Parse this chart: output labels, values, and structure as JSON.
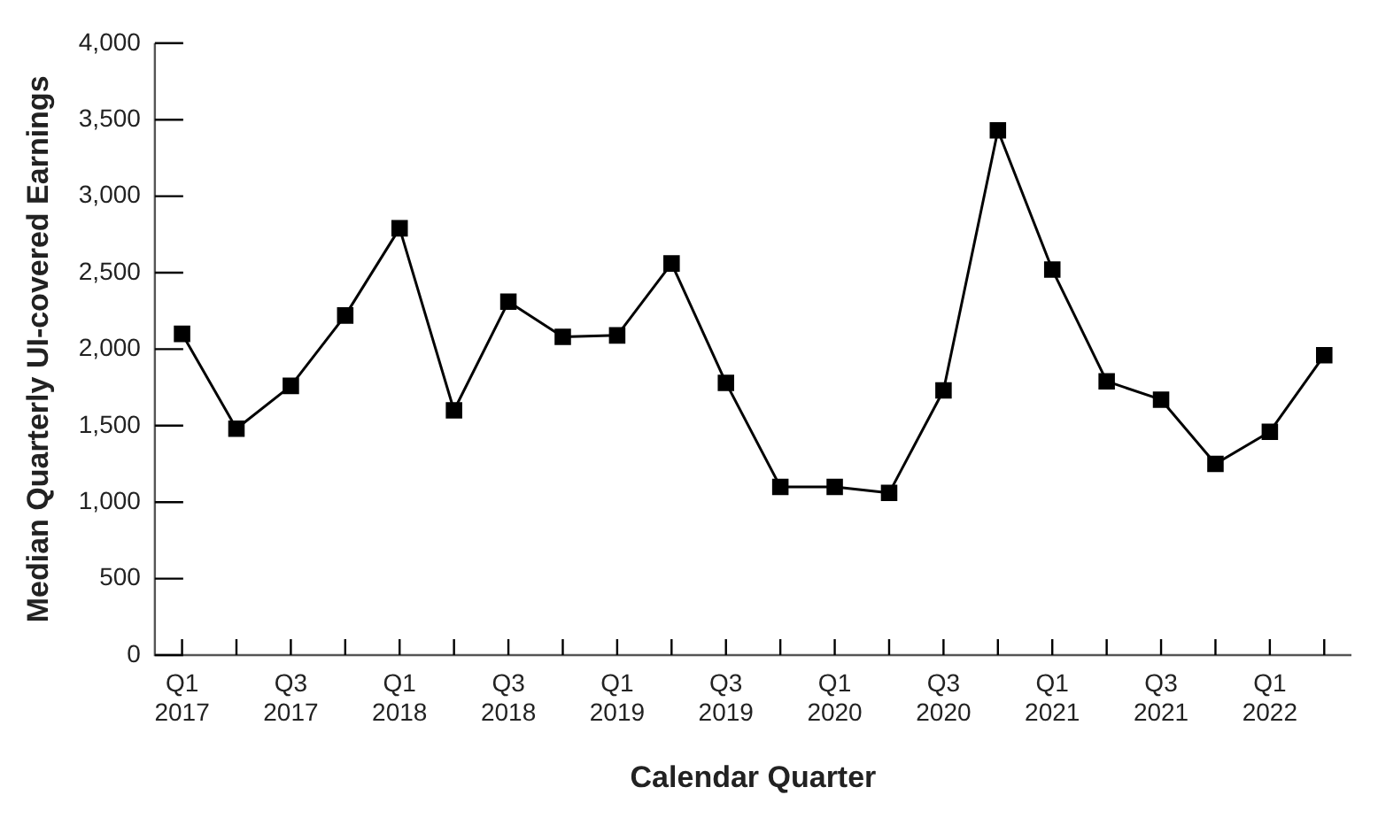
{
  "chart_data": {
    "type": "line",
    "xlabel": "Calendar Quarter",
    "ylabel": "Median Quarterly UI-covered Earnings",
    "categories": [
      "Q1 2017",
      null,
      "Q3 2017",
      null,
      "Q1 2018",
      null,
      "Q3 2018",
      null,
      "Q1 2019",
      null,
      "Q3 2019",
      null,
      "Q1 2020",
      null,
      "Q3 2020",
      null,
      "Q1 2021",
      null,
      "Q3 2021",
      null,
      "Q1 2022",
      null
    ],
    "series": [
      {
        "color": "#000000",
        "values": [
          2100,
          1480,
          1760,
          2220,
          2790,
          1600,
          2310,
          2080,
          2090,
          2560,
          1780,
          1100,
          1100,
          1060,
          1730,
          3430,
          2520,
          1790,
          1670,
          1250,
          1460,
          1960
        ]
      }
    ],
    "ylim": [
      0,
      4000
    ],
    "yticks": [
      {
        "value": 0,
        "label": "0"
      },
      {
        "value": 500,
        "label": "500"
      },
      {
        "value": 1000,
        "label": "1,000"
      },
      {
        "value": 1500,
        "label": "1,500"
      },
      {
        "value": 2000,
        "label": "2,000"
      },
      {
        "value": 2500,
        "label": "2,500"
      },
      {
        "value": 3000,
        "label": "3,000"
      },
      {
        "value": 3500,
        "label": "3,500"
      },
      {
        "value": 4000,
        "label": "4,000"
      }
    ],
    "grid": false,
    "legend": false,
    "marker": "square",
    "line_style": "solid"
  }
}
